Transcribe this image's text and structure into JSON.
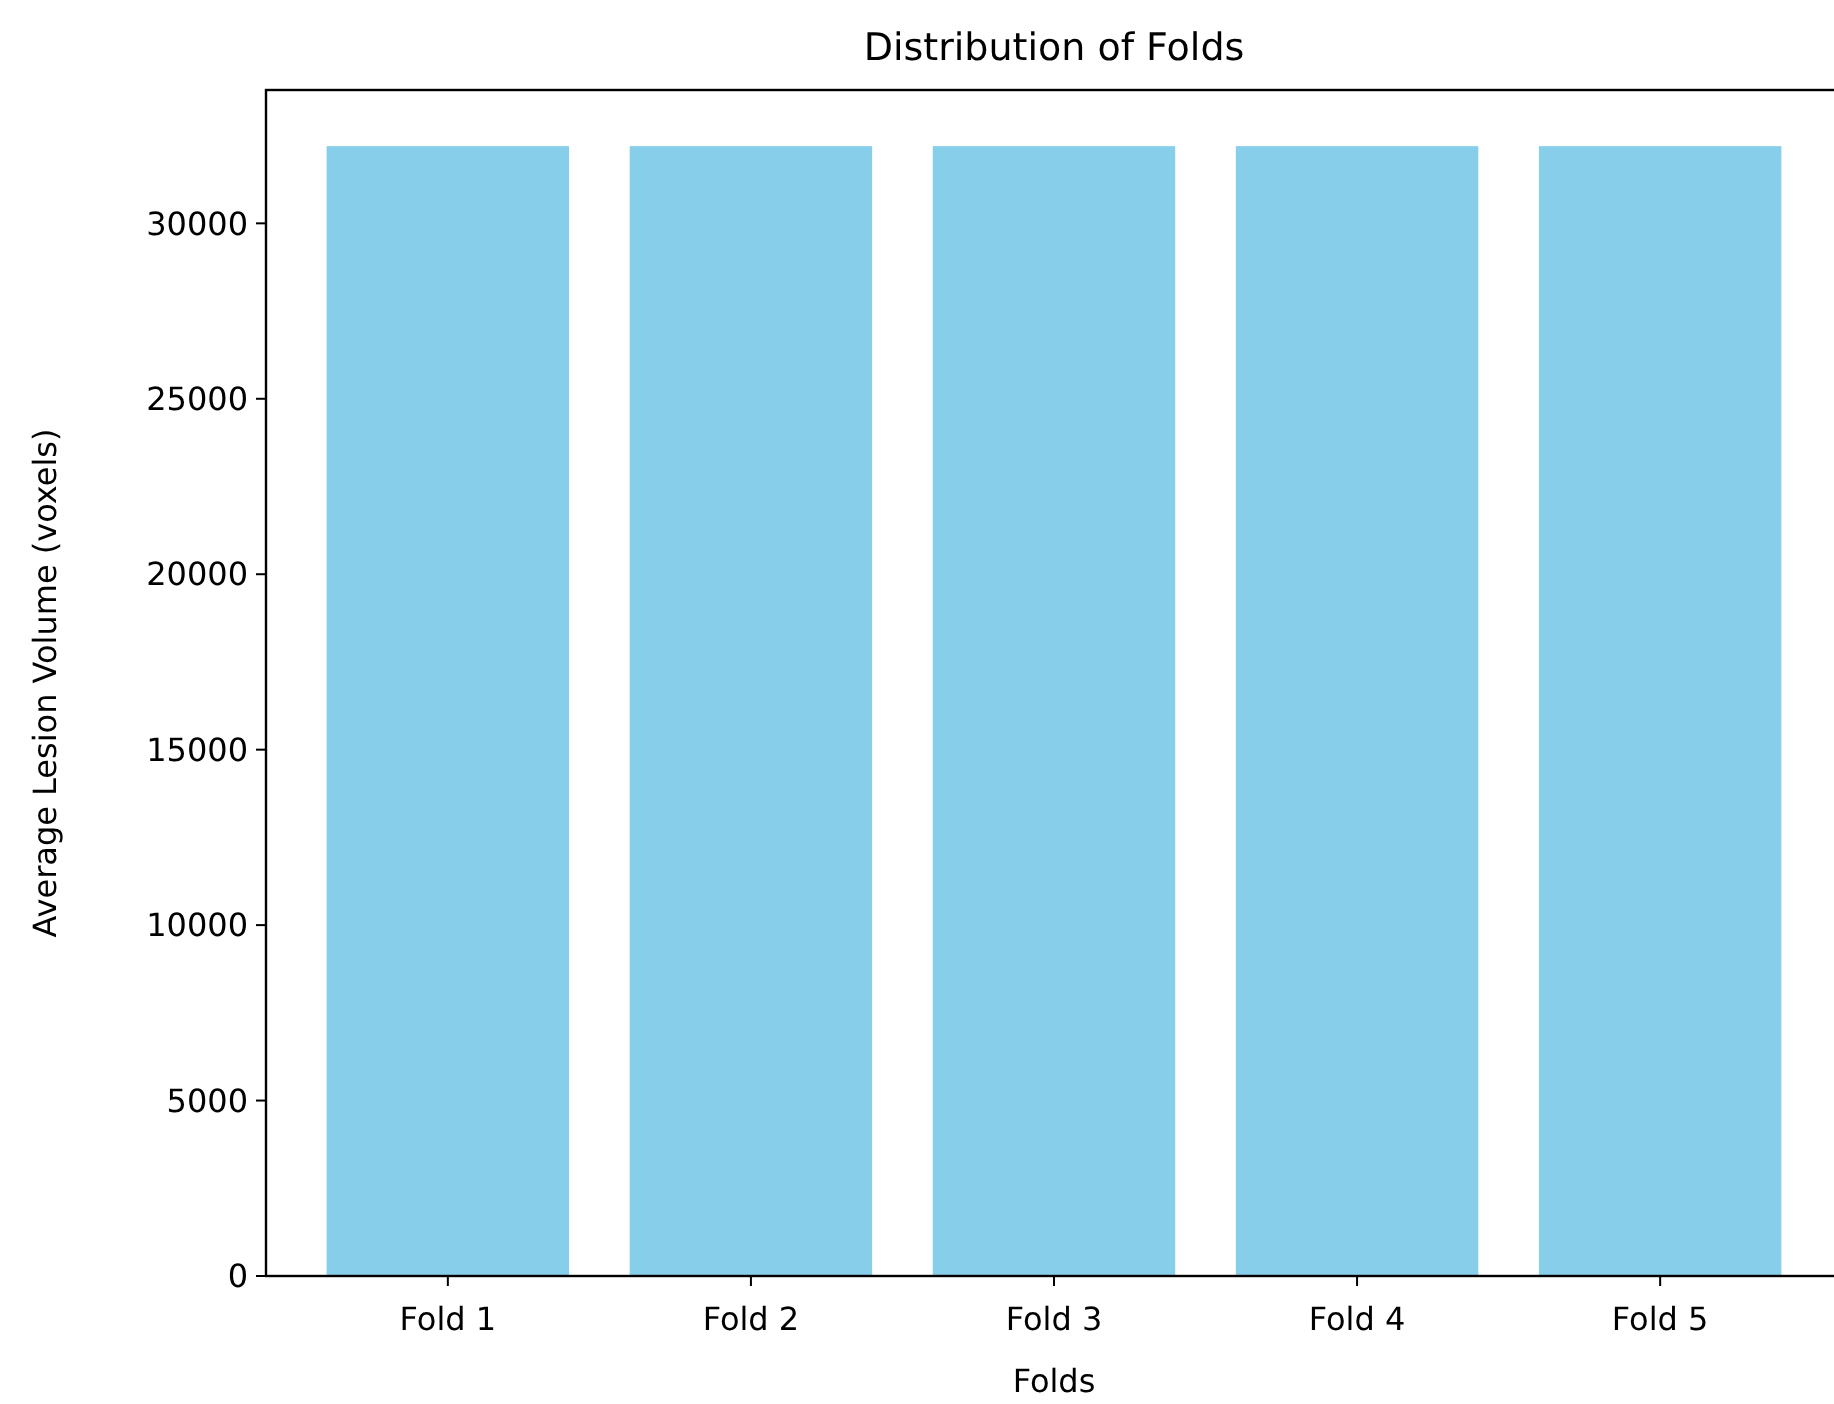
{
  "chart_data": {
    "type": "bar",
    "title": "Distribution of Folds",
    "xlabel": "Folds",
    "ylabel": "Average Lesion Volume (voxels)",
    "categories": [
      "Fold 1",
      "Fold 2",
      "Fold 3",
      "Fold 4",
      "Fold 5"
    ],
    "values": [
      32200,
      32200,
      32200,
      32200,
      32200
    ],
    "color": "#87ceeb",
    "ylim": [
      0,
      33800
    ],
    "yticks": [
      0,
      5000,
      10000,
      15000,
      20000,
      25000,
      30000
    ],
    "grid": false
  }
}
